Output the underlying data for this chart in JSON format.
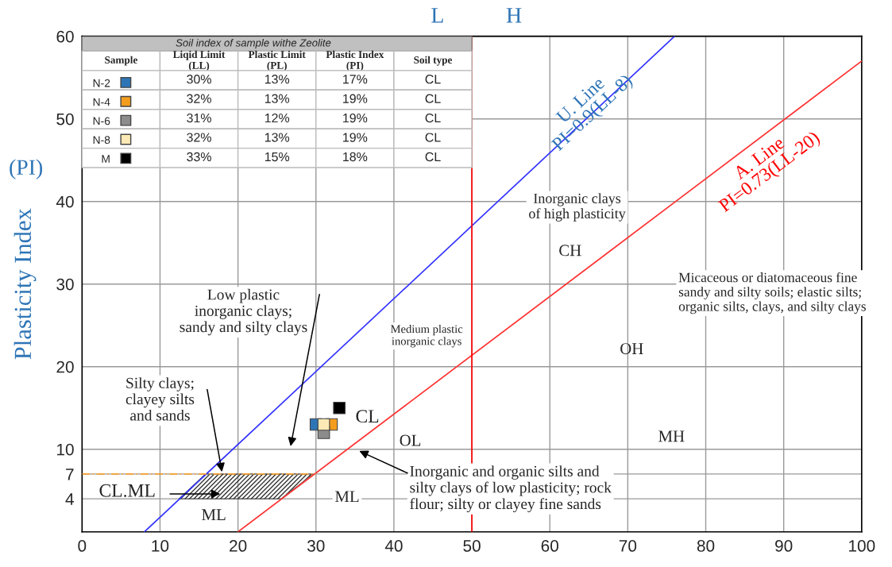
{
  "chart_data": {
    "type": "scatter",
    "ylabel": "Plasticity Index",
    "xlim": [
      0,
      100
    ],
    "ylim": [
      0,
      60
    ],
    "xticks": [
      0,
      10,
      20,
      30,
      40,
      50,
      60,
      70,
      80,
      90,
      100
    ],
    "yticks": [
      4,
      7,
      10,
      20,
      30,
      40,
      50,
      60
    ],
    "grid": true,
    "legend": "top left",
    "series": [
      {
        "type": "line",
        "color": "#3333ff",
        "x": [
          8,
          76
        ],
        "values": [
          0,
          60
        ],
        "marker": "none",
        "line_style": "solid"
      },
      {
        "type": "line",
        "color": "#ff3333",
        "x": [
          20,
          100
        ],
        "values": [
          0,
          57
        ],
        "marker": "none",
        "line_style": "solid"
      },
      {
        "type": "line",
        "color": "#f5a030",
        "x": [
          0,
          30
        ],
        "values": [
          7,
          7
        ],
        "marker": "none",
        "line_style": "dashed"
      },
      {
        "type": "area",
        "color": "#333333",
        "x": [
          12.4,
          15.8,
          29.6,
          25.5
        ],
        "values": [
          4,
          7,
          7,
          4
        ]
      },
      {
        "name": "N-2",
        "color": "#2e75b6",
        "x": [
          30
        ],
        "values": [
          13
        ],
        "marker": "square"
      },
      {
        "name": "N-4",
        "color": "#f39c1e",
        "x": [
          32
        ],
        "values": [
          13
        ],
        "marker": "square"
      },
      {
        "name": "N-6",
        "color": "#8c8c8c",
        "x": [
          31
        ],
        "values": [
          12
        ],
        "marker": "square"
      },
      {
        "name": "N-8",
        "color": "#fde9b5",
        "x": [
          31
        ],
        "values": [
          13
        ],
        "marker": "square"
      },
      {
        "name": "M",
        "color": "#000000",
        "x": [
          33
        ],
        "values": [
          15
        ],
        "marker": "square"
      }
    ],
    "ref_lines": [
      {
        "axis": "x",
        "value": 50,
        "color": "#ff0000",
        "line_style": "solid"
      }
    ],
    "annotations": [
      "Soil index of sample withe Zeolite",
      "Sample",
      "Liqid Limit\n(LL)",
      "Plastic Limit\n(PL)",
      "Plastic Index\n(PI)",
      "Soil type",
      "30%",
      "13%",
      "17%",
      "CL",
      "32%",
      "13%",
      "19%",
      "CL",
      "31%",
      "12%",
      "19%",
      "CL",
      "32%",
      "13%",
      "19%",
      "CL",
      "33%",
      "15%",
      "18%",
      "CL",
      "L",
      "H",
      "(PI)",
      "U. Line\nPI=0.9(LL-8)",
      "A. Line\nPI=0.73(LL-20)",
      "Inorganic clays\nof high plasticity",
      "CH",
      "Micaceous or diatomaceous fine\nsandy and silty soils; elastic silts;\norganic silts, clays, and silty clays",
      "OH",
      "Medium plastic\ninorganic clays",
      "Low plastic\ninorganic clays;\nsandy and silty clays",
      {
        "text": "Silty clays;\nclayey silts\nand sands",
        "x": 18,
        "y": 7
      },
      "CL",
      "OL",
      "MH",
      "Inorganic and organic silts and\nsilty clays of low plasticity; rock\nflour; silty or clayey fine sands",
      "CL.ML",
      "ML",
      "ML"
    ]
  }
}
